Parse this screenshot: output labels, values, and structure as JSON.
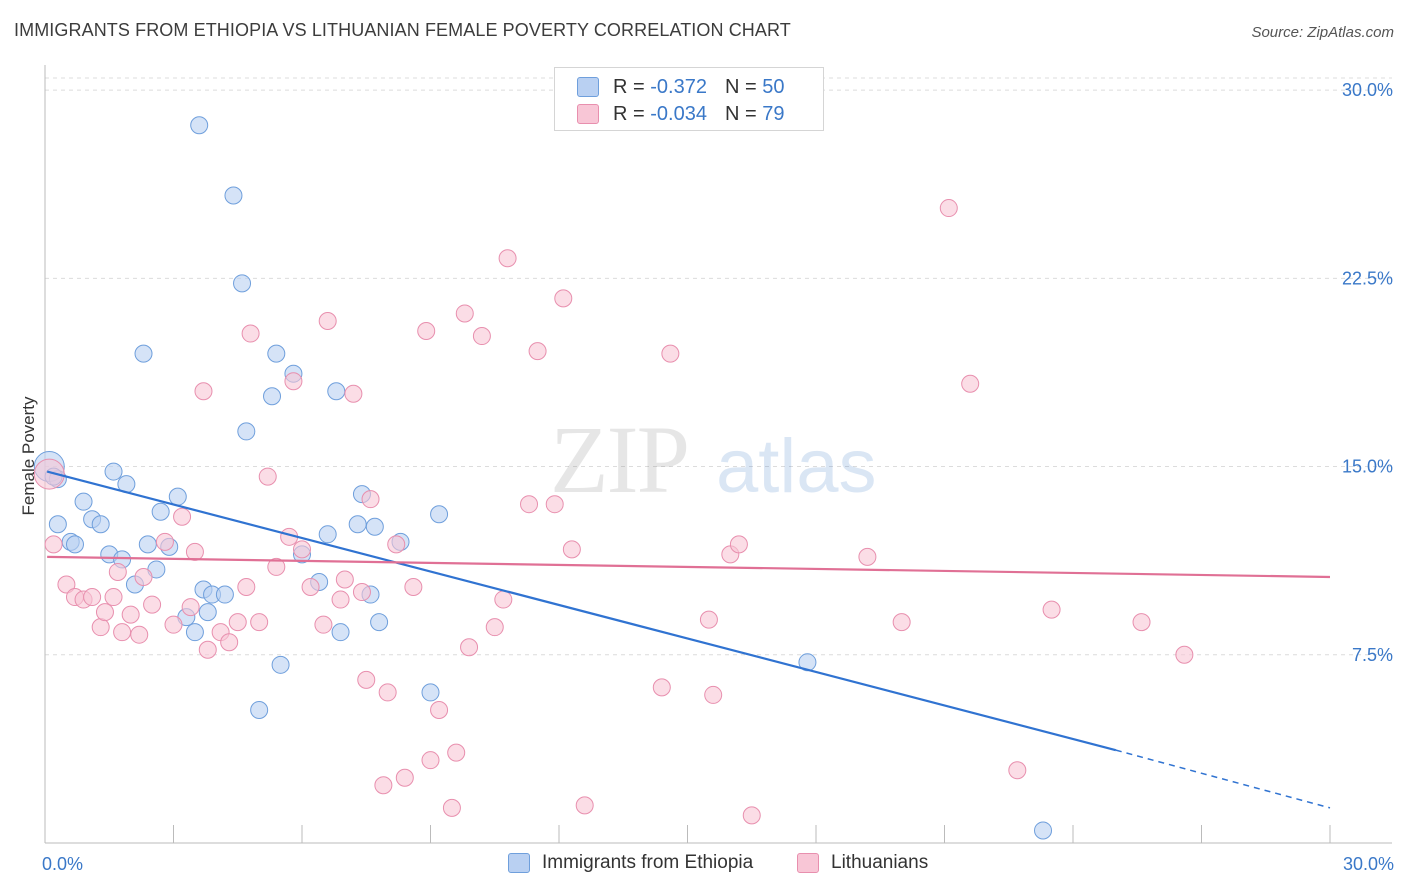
{
  "title": "IMMIGRANTS FROM ETHIOPIA VS LITHUANIAN FEMALE POVERTY CORRELATION CHART",
  "source": "Source: ZipAtlas.com",
  "watermark": {
    "zip": "ZIP",
    "atlas": "atlas"
  },
  "legend": {
    "rows": [
      {
        "r_label": "R = ",
        "r_value": "-0.372",
        "n_label": "N = ",
        "n_value": "50"
      },
      {
        "r_label": "R = ",
        "r_value": "-0.034",
        "n_label": "N = ",
        "n_value": "79"
      }
    ]
  },
  "bottom_legend": [
    "Immigrants from Ethiopia",
    "Lithuanians"
  ],
  "chart_data": {
    "type": "scatter",
    "title": "IMMIGRANTS FROM ETHIOPIA VS LITHUANIAN FEMALE POVERTY CORRELATION CHART",
    "xlabel": "",
    "ylabel": "Female Poverty",
    "xlim": [
      0,
      30
    ],
    "ylim": [
      0,
      31
    ],
    "x_tick_labels": [
      "0.0%",
      "30.0%"
    ],
    "y_ticks": [
      7.5,
      15.0,
      22.5,
      30.0
    ],
    "y_tick_labels": [
      "7.5%",
      "15.0%",
      "22.5%",
      "30.0%"
    ],
    "grid": true,
    "legend_placement": "top-center",
    "series": [
      {
        "name": "Immigrants from Ethiopia",
        "color": "#6f9fdc",
        "fill": "#b9d0f2",
        "r": -0.372,
        "n": 50,
        "trend": {
          "x0": 0.05,
          "y0": 14.8,
          "x1": 25.0,
          "y1": 3.7,
          "dashed_to_x": 30.0,
          "dashed_to_y": 1.4,
          "color": "#3073d1"
        },
        "points": [
          [
            0.1,
            15.0
          ],
          [
            0.3,
            14.5
          ],
          [
            0.3,
            12.7
          ],
          [
            0.6,
            12.0
          ],
          [
            0.7,
            11.9
          ],
          [
            0.9,
            13.6
          ],
          [
            1.1,
            12.9
          ],
          [
            1.3,
            12.7
          ],
          [
            1.5,
            11.5
          ],
          [
            1.6,
            14.8
          ],
          [
            1.8,
            11.3
          ],
          [
            1.9,
            14.3
          ],
          [
            2.1,
            10.3
          ],
          [
            2.3,
            19.5
          ],
          [
            2.4,
            11.9
          ],
          [
            2.6,
            10.9
          ],
          [
            2.7,
            13.2
          ],
          [
            2.9,
            11.8
          ],
          [
            3.1,
            13.8
          ],
          [
            3.3,
            9.0
          ],
          [
            3.5,
            8.4
          ],
          [
            3.6,
            28.6
          ],
          [
            3.7,
            10.1
          ],
          [
            3.8,
            9.2
          ],
          [
            3.9,
            9.9
          ],
          [
            4.2,
            9.9
          ],
          [
            4.4,
            25.8
          ],
          [
            4.6,
            22.3
          ],
          [
            4.7,
            16.4
          ],
          [
            5.0,
            5.3
          ],
          [
            5.3,
            17.8
          ],
          [
            5.4,
            19.5
          ],
          [
            5.5,
            7.1
          ],
          [
            5.8,
            18.7
          ],
          [
            6.0,
            11.5
          ],
          [
            6.4,
            10.4
          ],
          [
            6.6,
            12.3
          ],
          [
            6.8,
            18.0
          ],
          [
            6.9,
            8.4
          ],
          [
            7.3,
            12.7
          ],
          [
            7.4,
            13.9
          ],
          [
            7.6,
            9.9
          ],
          [
            7.7,
            12.6
          ],
          [
            7.8,
            8.8
          ],
          [
            8.3,
            12.0
          ],
          [
            9.0,
            6.0
          ],
          [
            9.2,
            13.1
          ],
          [
            17.8,
            7.2
          ],
          [
            23.3,
            0.5
          ],
          [
            0.2,
            14.6
          ]
        ]
      },
      {
        "name": "Lithuanians",
        "color": "#e88fae",
        "fill": "#f8c6d6",
        "r": -0.034,
        "n": 79,
        "trend": {
          "x0": 0.05,
          "y0": 11.4,
          "x1": 30.0,
          "y1": 10.6,
          "color": "#e07095"
        },
        "points": [
          [
            0.1,
            14.7
          ],
          [
            0.2,
            11.9
          ],
          [
            0.5,
            10.3
          ],
          [
            0.7,
            9.8
          ],
          [
            0.9,
            9.7
          ],
          [
            1.1,
            9.8
          ],
          [
            1.3,
            8.6
          ],
          [
            1.4,
            9.2
          ],
          [
            1.6,
            9.8
          ],
          [
            1.7,
            10.8
          ],
          [
            1.8,
            8.4
          ],
          [
            2.0,
            9.1
          ],
          [
            2.2,
            8.3
          ],
          [
            2.3,
            10.6
          ],
          [
            2.5,
            9.5
          ],
          [
            2.8,
            12.0
          ],
          [
            3.0,
            8.7
          ],
          [
            3.2,
            13.0
          ],
          [
            3.4,
            9.4
          ],
          [
            3.5,
            11.6
          ],
          [
            3.7,
            18.0
          ],
          [
            3.8,
            7.7
          ],
          [
            4.1,
            8.4
          ],
          [
            4.3,
            8.0
          ],
          [
            4.5,
            8.8
          ],
          [
            4.7,
            10.2
          ],
          [
            4.8,
            20.3
          ],
          [
            5.0,
            8.8
          ],
          [
            5.2,
            14.6
          ],
          [
            5.4,
            11.0
          ],
          [
            5.7,
            12.2
          ],
          [
            5.8,
            18.4
          ],
          [
            6.0,
            11.7
          ],
          [
            6.2,
            10.2
          ],
          [
            6.5,
            8.7
          ],
          [
            6.6,
            20.8
          ],
          [
            6.9,
            9.7
          ],
          [
            7.0,
            10.5
          ],
          [
            7.2,
            17.9
          ],
          [
            7.4,
            10.0
          ],
          [
            7.5,
            6.5
          ],
          [
            7.6,
            13.7
          ],
          [
            7.9,
            2.3
          ],
          [
            8.0,
            6.0
          ],
          [
            8.2,
            11.9
          ],
          [
            8.4,
            2.6
          ],
          [
            8.6,
            10.2
          ],
          [
            8.9,
            20.4
          ],
          [
            9.0,
            3.3
          ],
          [
            9.2,
            5.3
          ],
          [
            9.5,
            1.4
          ],
          [
            9.6,
            3.6
          ],
          [
            9.8,
            21.1
          ],
          [
            9.9,
            7.8
          ],
          [
            10.2,
            20.2
          ],
          [
            10.5,
            8.6
          ],
          [
            10.7,
            9.7
          ],
          [
            10.8,
            23.3
          ],
          [
            11.3,
            13.5
          ],
          [
            11.5,
            19.6
          ],
          [
            11.9,
            13.5
          ],
          [
            12.1,
            21.7
          ],
          [
            12.3,
            11.7
          ],
          [
            12.6,
            1.5
          ],
          [
            14.4,
            6.2
          ],
          [
            14.6,
            19.5
          ],
          [
            15.5,
            8.9
          ],
          [
            15.6,
            5.9
          ],
          [
            16.0,
            11.5
          ],
          [
            16.2,
            11.9
          ],
          [
            16.5,
            1.1
          ],
          [
            19.2,
            11.4
          ],
          [
            20.0,
            8.8
          ],
          [
            21.1,
            25.3
          ],
          [
            21.6,
            18.3
          ],
          [
            22.7,
            2.9
          ],
          [
            23.5,
            9.3
          ],
          [
            25.6,
            8.8
          ],
          [
            26.6,
            7.5
          ]
        ]
      }
    ]
  }
}
